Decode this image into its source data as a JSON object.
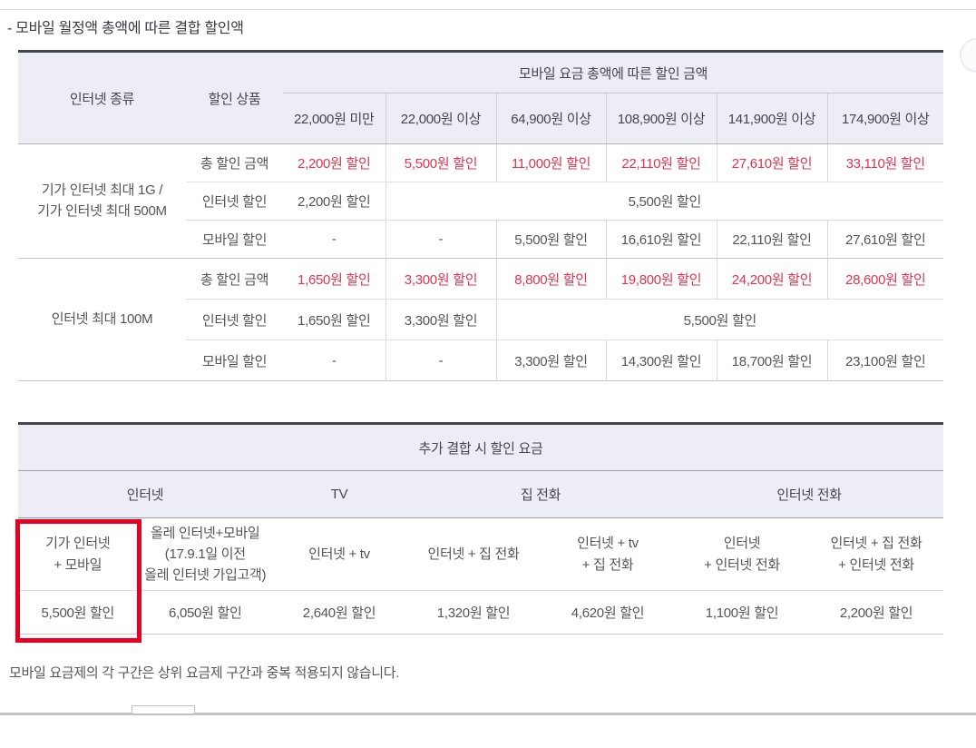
{
  "page": {
    "title": "- 모바일 월정액 총액에 따른 결합 할인액",
    "footnote": "모바일 요금제의 각 구간은 상위 요금제 구간과 중복 적용되지 않습니다."
  },
  "colors": {
    "header_bg": "#ededf6",
    "table_top_border": "#46464e",
    "red_value_text": "#e4344f",
    "highlight_box_red": "#e60021",
    "body_text": "#555558",
    "header_text": "#45454d"
  },
  "table1": {
    "header": {
      "col_internet_type": "인터넷 종류",
      "col_discount_product": "할인 상품",
      "group_header": "모바일 요금 총액에 따른 할인 금액",
      "tiers": [
        "22,000원 미만",
        "22,000원 이상",
        "64,900원 이상",
        "108,900원 이상",
        "141,900원 이상",
        "174,900원 이상"
      ]
    },
    "groups": [
      {
        "internet_type_lines": [
          "기가 인터넷 최대 1G /",
          "기가 인터넷 최대 500M"
        ],
        "rows": [
          {
            "label": "총 할인 금액",
            "red": true,
            "values": [
              "2,200원 할인",
              "5,500원 할인",
              "11,000원 할인",
              "22,110원 할인",
              "27,610원 할인",
              "33,110원 할인"
            ]
          },
          {
            "label": "인터넷 할인",
            "red": false,
            "values": [
              "2,200원 할인"
            ],
            "span_value": "5,500원 할인",
            "span_cols": 5
          },
          {
            "label": "모바일 할인",
            "red": false,
            "values": [
              "-",
              "-",
              "5,500원 할인",
              "16,610원 할인",
              "22,110원 할인",
              "27,610원 할인"
            ]
          }
        ]
      },
      {
        "internet_type_lines": [
          "인터넷 최대 100M"
        ],
        "rows": [
          {
            "label": "총 할인 금액",
            "red": true,
            "values": [
              "1,650원 할인",
              "3,300원 할인",
              "8,800원 할인",
              "19,800원 할인",
              "24,200원 할인",
              "28,600원 할인"
            ]
          },
          {
            "label": "인터넷 할인",
            "red": false,
            "values": [
              "1,650원 할인",
              "3,300원 할인"
            ],
            "span_value": "5,500원 할인",
            "span_cols": 4
          },
          {
            "label": "모바일 할인",
            "red": false,
            "values": [
              "-",
              "-",
              "3,300원 할인",
              "14,300원 할인",
              "18,700원 할인",
              "23,100원 할인"
            ]
          }
        ]
      }
    ]
  },
  "table2": {
    "title": "추가 결합 시 할인 요금",
    "category_headers": [
      {
        "label": "인터넷",
        "colspan": 2
      },
      {
        "label": "TV",
        "colspan": 1
      },
      {
        "label": "집 전화",
        "colspan": 2
      },
      {
        "label": "인터넷 전화",
        "colspan": 2
      }
    ],
    "columns": [
      {
        "label_lines": [
          "기가 인터넷",
          "+ 모바일"
        ],
        "value": "5,500원 할인",
        "highlighted": true
      },
      {
        "label_lines": [
          "올레 인터넷+모바일",
          "(17.9.1일 이전",
          "올레 인터넷 가입고객)"
        ],
        "value": "6,050원 할인",
        "highlighted": false
      },
      {
        "label_lines": [
          "인터넷 + tv"
        ],
        "value": "2,640원 할인",
        "highlighted": false
      },
      {
        "label_lines": [
          "인터넷 + 집 전화"
        ],
        "value": "1,320원 할인",
        "highlighted": false
      },
      {
        "label_lines": [
          "인터넷 + tv",
          "+ 집 전화"
        ],
        "value": "4,620원 할인",
        "highlighted": false
      },
      {
        "label_lines": [
          "인터넷",
          "+ 인터넷 전화"
        ],
        "value": "1,100원 할인",
        "highlighted": false
      },
      {
        "label_lines": [
          "인터넷 + 집 전화",
          "+ 인터넷 전화"
        ],
        "value": "2,200원 할인",
        "highlighted": false
      }
    ]
  }
}
